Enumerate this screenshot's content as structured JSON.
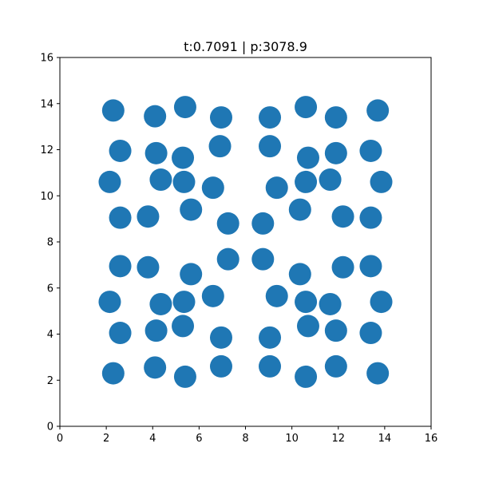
{
  "chart_data": {
    "type": "scatter",
    "title": "t:0.7091 | p:3078.9",
    "xlabel": "",
    "ylabel": "",
    "xlim": [
      0,
      16
    ],
    "ylim": [
      0,
      16
    ],
    "xticks": [
      0,
      2,
      4,
      6,
      8,
      10,
      12,
      14,
      16
    ],
    "yticks": [
      0,
      2,
      4,
      6,
      8,
      10,
      12,
      14,
      16
    ],
    "grid": false,
    "marker_color": "#1f77b4",
    "series": [
      {
        "points": [
          [
            2.3,
            13.7
          ],
          [
            4.1,
            13.45
          ],
          [
            5.4,
            13.85
          ],
          [
            6.95,
            13.4
          ],
          [
            9.05,
            13.4
          ],
          [
            10.6,
            13.85
          ],
          [
            11.9,
            13.4
          ],
          [
            13.7,
            13.7
          ],
          [
            2.6,
            11.95
          ],
          [
            4.15,
            11.85
          ],
          [
            5.3,
            11.65
          ],
          [
            6.9,
            12.15
          ],
          [
            9.05,
            12.15
          ],
          [
            10.7,
            11.65
          ],
          [
            11.9,
            11.85
          ],
          [
            13.4,
            11.95
          ],
          [
            2.15,
            10.6
          ],
          [
            4.35,
            10.7
          ],
          [
            5.35,
            10.6
          ],
          [
            6.6,
            10.35
          ],
          [
            9.35,
            10.35
          ],
          [
            10.6,
            10.6
          ],
          [
            11.65,
            10.7
          ],
          [
            13.85,
            10.6
          ],
          [
            2.6,
            9.05
          ],
          [
            3.8,
            9.1
          ],
          [
            5.65,
            9.4
          ],
          [
            7.25,
            8.8
          ],
          [
            8.75,
            8.8
          ],
          [
            10.35,
            9.4
          ],
          [
            12.2,
            9.1
          ],
          [
            13.4,
            9.05
          ],
          [
            2.6,
            6.95
          ],
          [
            3.8,
            6.9
          ],
          [
            5.65,
            6.6
          ],
          [
            7.25,
            7.25
          ],
          [
            8.75,
            7.25
          ],
          [
            10.35,
            6.6
          ],
          [
            12.2,
            6.9
          ],
          [
            13.4,
            6.95
          ],
          [
            2.15,
            5.4
          ],
          [
            4.35,
            5.3
          ],
          [
            5.35,
            5.4
          ],
          [
            6.6,
            5.65
          ],
          [
            9.35,
            5.65
          ],
          [
            10.6,
            5.4
          ],
          [
            11.65,
            5.3
          ],
          [
            13.85,
            5.4
          ],
          [
            2.6,
            4.05
          ],
          [
            4.15,
            4.15
          ],
          [
            5.3,
            4.35
          ],
          [
            6.95,
            3.85
          ],
          [
            9.05,
            3.85
          ],
          [
            10.7,
            4.35
          ],
          [
            11.9,
            4.15
          ],
          [
            13.4,
            4.05
          ],
          [
            2.3,
            2.3
          ],
          [
            4.1,
            2.55
          ],
          [
            5.4,
            2.15
          ],
          [
            6.95,
            2.6
          ],
          [
            9.05,
            2.6
          ],
          [
            10.6,
            2.15
          ],
          [
            11.9,
            2.6
          ],
          [
            13.7,
            2.3
          ]
        ]
      }
    ]
  }
}
